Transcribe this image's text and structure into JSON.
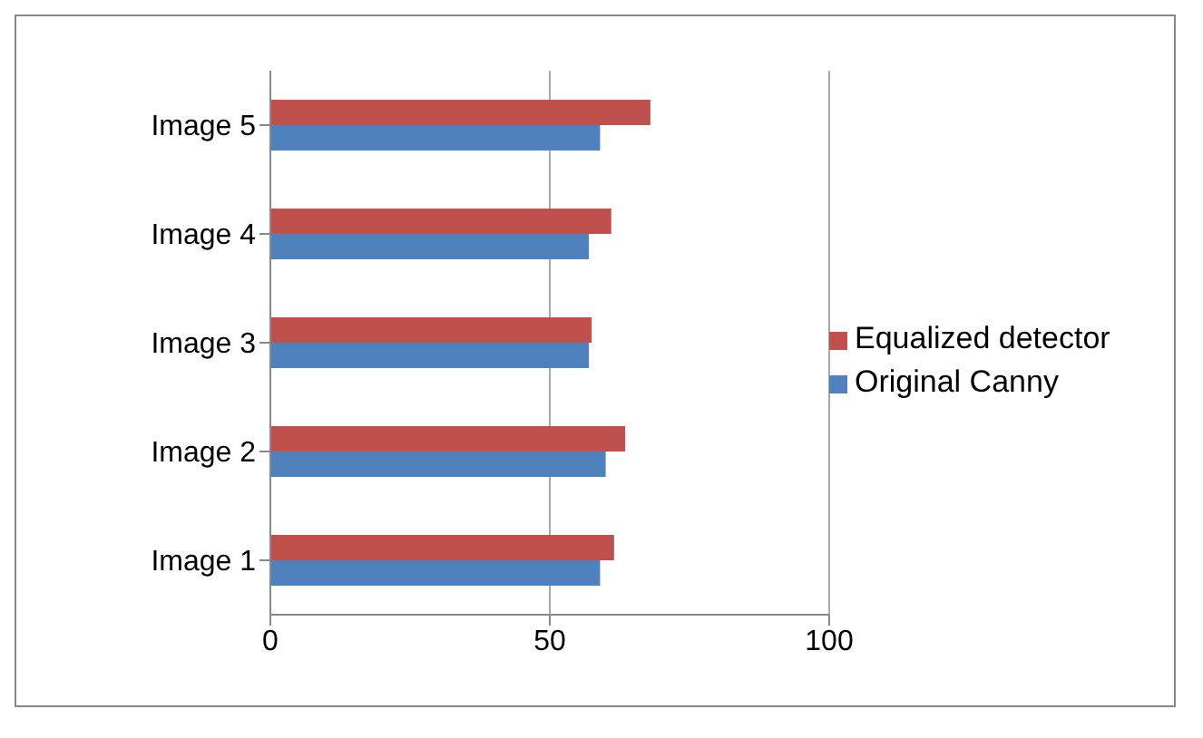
{
  "chart_data": {
    "type": "bar",
    "orientation": "horizontal",
    "categories": [
      "Image 5",
      "Image 4",
      "Image 3",
      "Image 2",
      "Image 1"
    ],
    "series": [
      {
        "name": "Equalized detector",
        "color": "#c0504d",
        "values": [
          68,
          61,
          57.5,
          63.5,
          61.5
        ]
      },
      {
        "name": "Original Canny",
        "color": "#4f81bd",
        "values": [
          59,
          57,
          57,
          60,
          59
        ]
      }
    ],
    "xlim": [
      0,
      100
    ],
    "xticks": [
      0,
      50,
      100
    ],
    "grid": "x",
    "legend": "right"
  }
}
